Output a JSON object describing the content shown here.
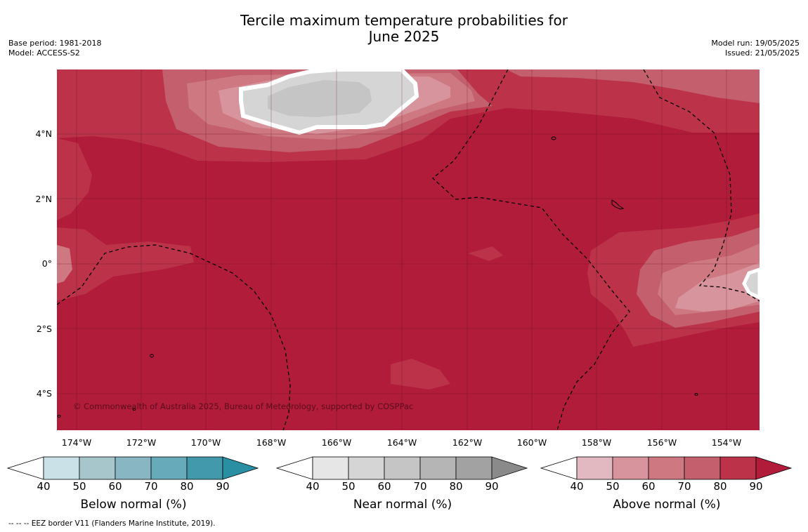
{
  "title_line1": "Tercile maximum temperature probabilities for",
  "title_line2": "June 2025",
  "base_period": "Base period: 1981-2018",
  "model": "Model: ACCESS-S2",
  "model_run": "Model run: 19/05/2025",
  "issued": "Issued: 21/05/2025",
  "copyright": "© Commonwealth of Australia 2025, Bureau of Meteorology, supported by COSPPac",
  "lat_ticks": [
    "4°N",
    "2°N",
    "0°",
    "2°S",
    "4°S"
  ],
  "lon_ticks": [
    "174°W",
    "172°W",
    "170°W",
    "168°W",
    "166°W",
    "164°W",
    "162°W",
    "160°W",
    "158°W",
    "156°W",
    "154°W"
  ],
  "colorbars": [
    {
      "title": "Below normal (%)",
      "ticks": [
        "40",
        "50",
        "60",
        "70",
        "80",
        "90"
      ],
      "colors": [
        "#c9e1e7",
        "#a7c6cc",
        "#88b6c3",
        "#67aab9",
        "#4299ab"
      ],
      "end_color": "#2a8fa3"
    },
    {
      "title": "Near normal (%)",
      "ticks": [
        "40",
        "50",
        "60",
        "70",
        "80",
        "90"
      ],
      "colors": [
        "#e6e6e6",
        "#d5d5d5",
        "#c5c5c5",
        "#b5b5b5",
        "#a2a2a2"
      ],
      "end_color": "#8a8a8a"
    },
    {
      "title": "Above normal (%)",
      "ticks": [
        "40",
        "50",
        "60",
        "70",
        "80",
        "90"
      ],
      "colors": [
        "#e2b9c0",
        "#d8949d",
        "#ce7882",
        "#c45f6d",
        "#bb3249"
      ],
      "end_color": "#b01c3a"
    }
  ],
  "footnote": "--  --  -- EEZ border V11 (Flanders Marine Institute, 2019).",
  "map_colors": {
    "above_90": "#b11c3a",
    "above_80": "#bb3249",
    "above_70": "#c45f6d",
    "above_60": "#ce7882",
    "above_50": "#d8949d",
    "near_50": "#d5d5d5",
    "near_60": "#c5c5c5"
  }
}
